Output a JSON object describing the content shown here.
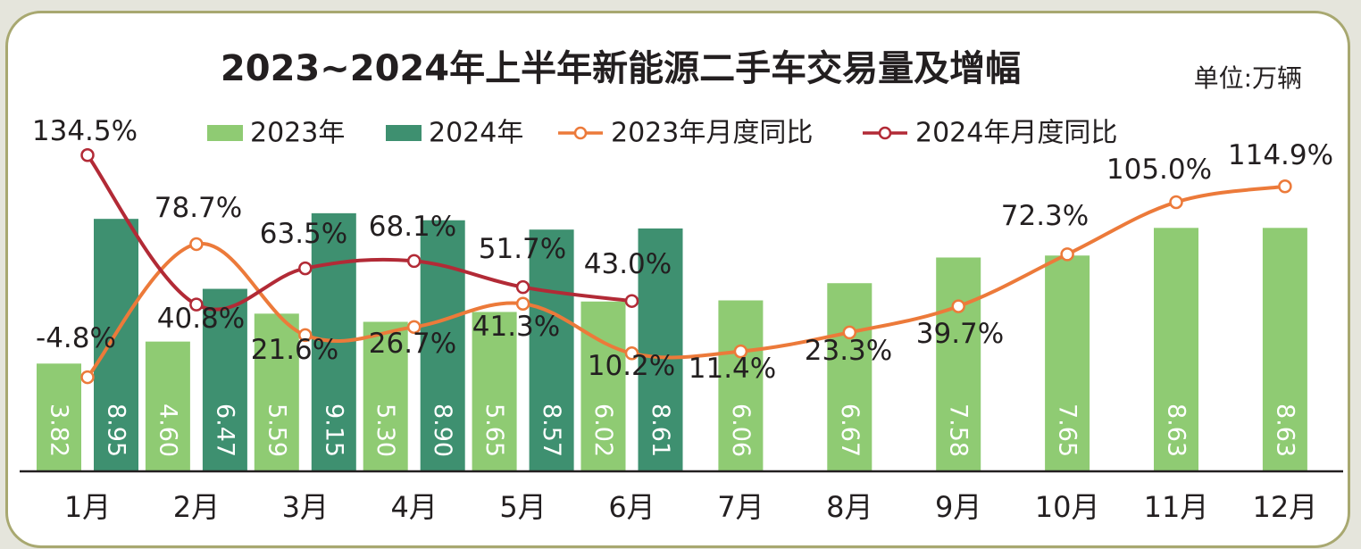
{
  "title": "2023~2024年上半年新能源二手车交易量及增幅",
  "unit": "单位:万辆",
  "colors": {
    "bar2023": "#8fcb73",
    "bar2024": "#3e9070",
    "line2023": "#ec7a3a",
    "line2024": "#b22a36",
    "axis": "#231f20",
    "barText": "#ffffff",
    "text": "#231f20"
  },
  "chart_data": {
    "type": "bar",
    "categories": [
      "1月",
      "2月",
      "3月",
      "4月",
      "5月",
      "6月",
      "7月",
      "8月",
      "9月",
      "10月",
      "11月",
      "12月"
    ],
    "series": [
      {
        "name": "2023年",
        "kind": "bar",
        "values": [
          3.82,
          4.6,
          5.59,
          5.3,
          5.65,
          6.02,
          6.06,
          6.67,
          7.58,
          7.65,
          8.63,
          8.63
        ]
      },
      {
        "name": "2024年",
        "kind": "bar",
        "values": [
          8.95,
          6.47,
          9.15,
          8.9,
          8.57,
          8.61,
          null,
          null,
          null,
          null,
          null,
          null
        ]
      },
      {
        "name": "2023年月度同比",
        "kind": "line",
        "values": [
          -4.8,
          78.7,
          21.6,
          26.7,
          41.3,
          10.2,
          11.4,
          23.3,
          39.7,
          72.3,
          105.0,
          114.9
        ]
      },
      {
        "name": "2024年月度同比",
        "kind": "line",
        "values": [
          134.5,
          40.8,
          63.5,
          68.1,
          51.7,
          43.0,
          null,
          null,
          null,
          null,
          null,
          null
        ]
      }
    ],
    "bar_labels_2023": [
      "3.82",
      "4.60",
      "5.59",
      "5.30",
      "5.65",
      "6.02",
      "6.06",
      "6.67",
      "7.58",
      "7.65",
      "8.63",
      "8.63"
    ],
    "bar_labels_2024": [
      "8.95",
      "6.47",
      "9.15",
      "8.90",
      "8.57",
      "8.61"
    ],
    "line_labels_2023": [
      "-4.8%",
      "78.7%",
      "21.6%",
      "26.7%",
      "41.3%",
      "10.2%",
      "11.4%",
      "23.3%",
      "39.7%",
      "72.3%",
      "105.0%",
      "114.9%"
    ],
    "line_labels_2024": [
      "134.5%",
      "40.8%",
      "63.5%",
      "68.1%",
      "51.7%",
      "43.0%"
    ],
    "bar_ylim": [
      0,
      10
    ],
    "line_ylim": [
      -20,
      160
    ],
    "legend_position": "top",
    "grid": false
  }
}
